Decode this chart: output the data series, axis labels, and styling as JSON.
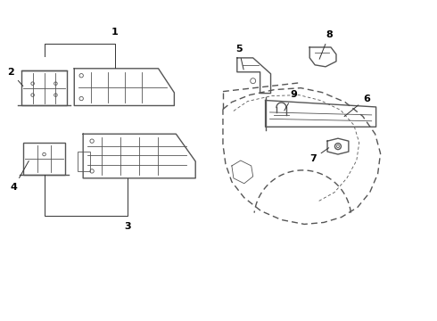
{
  "bg_color": "#ffffff",
  "line_color": "#555555",
  "label_color": "#000000",
  "fig_width": 4.9,
  "fig_height": 3.6,
  "dpi": 100,
  "xlim": [
    0,
    4.9
  ],
  "ylim": [
    0,
    3.6
  ],
  "lw_main": 1.0,
  "lw_thin": 0.6,
  "label_fontsize": 8
}
